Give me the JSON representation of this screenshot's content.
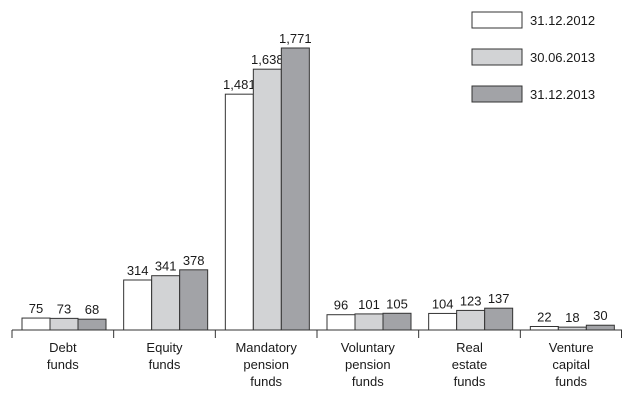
{
  "chart_data": {
    "type": "bar",
    "categories": [
      "Debt\nfunds",
      "Equity\nfunds",
      "Mandatory\npension\nfunds",
      "Voluntary\npension\nfunds",
      "Real\nestate\nfunds",
      "Venture\ncapital\nfunds"
    ],
    "series": [
      {
        "name": "31.12.2012",
        "color": "#ffffff",
        "values": [
          75,
          314,
          1481,
          96,
          104,
          22
        ],
        "value_labels": [
          "75",
          "314",
          "1,481",
          "96",
          "104",
          "22"
        ]
      },
      {
        "name": "30.06.2013",
        "color": "#d2d3d5",
        "values": [
          73,
          341,
          1638,
          101,
          123,
          18
        ],
        "value_labels": [
          "73",
          "341",
          "1,638",
          "101",
          "123",
          "18"
        ]
      },
      {
        "name": "31.12.2013",
        "color": "#a2a3a7",
        "values": [
          68,
          378,
          1771,
          105,
          137,
          30
        ],
        "value_labels": [
          "68",
          "378",
          "1,771",
          "105",
          "137",
          "30"
        ]
      }
    ],
    "legend": "top-right"
  }
}
